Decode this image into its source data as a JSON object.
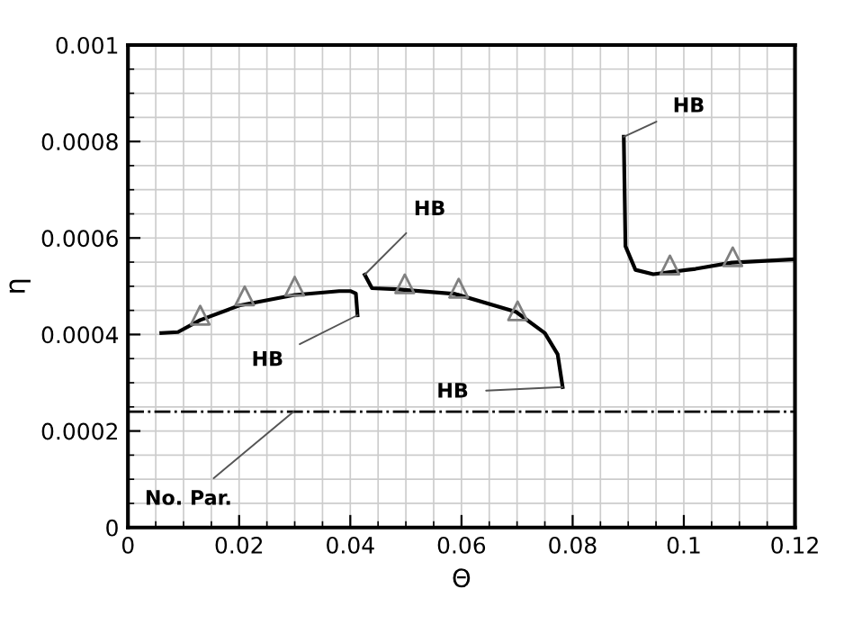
{
  "chart_data": {
    "type": "line",
    "xlabel": "Θ",
    "ylabel": "η",
    "xlim": [
      0,
      0.12
    ],
    "xticks": [
      0,
      0.02,
      0.04,
      0.06,
      0.08,
      0.1,
      0.12
    ],
    "ylim": [
      0,
      0.001
    ],
    "yticks": [
      0,
      0.0002,
      0.0004,
      0.0006,
      0.0008,
      0.001
    ],
    "grid": true,
    "series": [
      {
        "color": "#000000",
        "marker": "none",
        "line_style": "solid",
        "x": [
          0.006,
          0.009,
          0.013,
          0.02,
          0.03,
          0.038,
          0.04,
          0.041,
          0.0413
        ],
        "values": [
          0.000403,
          0.000405,
          0.00043,
          0.00046,
          0.000482,
          0.00049,
          0.00049,
          0.000485,
          0.00044
        ]
      },
      {
        "color": "#000000",
        "marker": "none",
        "line_style": "solid",
        "x": [
          0.0426,
          0.0439,
          0.0482,
          0.0589,
          0.0698,
          0.075,
          0.0773,
          0.0782
        ],
        "values": [
          0.000524,
          0.000496,
          0.000494,
          0.000484,
          0.000447,
          0.000403,
          0.000359,
          0.000291
        ]
      },
      {
        "color": "#000000",
        "marker": "none",
        "line_style": "solid",
        "x": [
          0.0892,
          0.0895,
          0.0913,
          0.0945,
          0.1021,
          0.1086,
          0.12
        ],
        "values": [
          0.00081,
          0.000583,
          0.000534,
          0.000525,
          0.000536,
          0.000549,
          0.000556
        ]
      },
      {
        "type": "scatter",
        "color": "#808080",
        "marker": "triangle",
        "x": [
          0.013,
          0.021,
          0.03,
          0.0498,
          0.0595,
          0.0701,
          0.0975,
          0.1088
        ],
        "values": [
          0.00044,
          0.00048,
          0.0005,
          0.000505,
          0.000496,
          0.000449,
          0.000544,
          0.000561
        ]
      }
    ],
    "ref_lines": [
      {
        "axis": "y",
        "value": 0.00024,
        "label": "No. Par.",
        "line_style": "dashdot",
        "color": "#000000"
      }
    ],
    "annotations": [
      {
        "text": "HB",
        "x": 0.0413,
        "y": 0.00044
      },
      {
        "text": "HB",
        "x": 0.0426,
        "y": 0.000524
      },
      {
        "text": "HB",
        "x": 0.0782,
        "y": 0.000291
      },
      {
        "text": "HB",
        "x": 0.0892,
        "y": 0.00081
      }
    ]
  }
}
